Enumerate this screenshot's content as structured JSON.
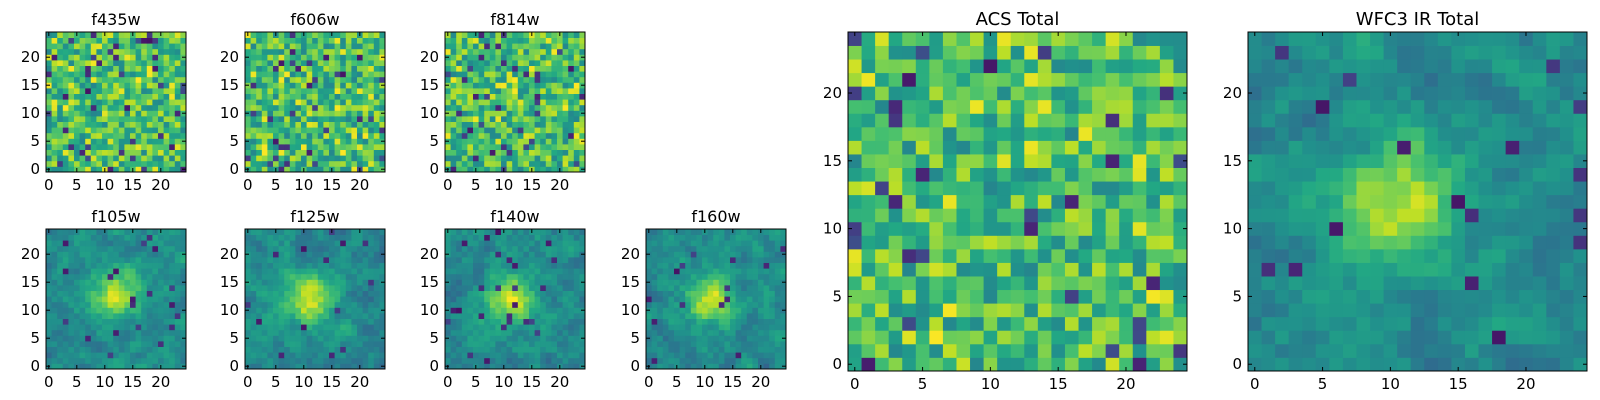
{
  "figure": {
    "background": "#ffffff",
    "colormap": "viridis",
    "colormap_stops": [
      "#440154",
      "#482475",
      "#414487",
      "#355f8d",
      "#2a788e",
      "#21918c",
      "#22a884",
      "#44bf70",
      "#7ad151",
      "#bddf26",
      "#fde725"
    ]
  },
  "chart_data": [
    {
      "name": "f435w",
      "type": "heatmap",
      "title": "f435w",
      "grid": [
        25,
        25
      ],
      "xlim": [
        -0.5,
        24.5
      ],
      "ylim": [
        -0.5,
        24.5
      ],
      "xticks": [
        0,
        5,
        10,
        15,
        20
      ],
      "yticks": [
        0,
        5,
        10,
        15,
        20
      ],
      "profile": "noise",
      "seed": 11
    },
    {
      "name": "f606w",
      "type": "heatmap",
      "title": "f606w",
      "grid": [
        25,
        25
      ],
      "xlim": [
        -0.5,
        24.5
      ],
      "ylim": [
        -0.5,
        24.5
      ],
      "xticks": [
        0,
        5,
        10,
        15,
        20
      ],
      "yticks": [
        0,
        5,
        10,
        15,
        20
      ],
      "profile": "noise",
      "seed": 23
    },
    {
      "name": "f814w",
      "type": "heatmap",
      "title": "f814w",
      "grid": [
        25,
        25
      ],
      "xlim": [
        -0.5,
        24.5
      ],
      "ylim": [
        -0.5,
        24.5
      ],
      "xticks": [
        0,
        5,
        10,
        15,
        20
      ],
      "yticks": [
        0,
        5,
        10,
        15,
        20
      ],
      "profile": "noise",
      "seed": 37
    },
    {
      "name": "f105w",
      "type": "heatmap",
      "title": "f105w",
      "grid": [
        25,
        25
      ],
      "xlim": [
        -0.5,
        24.5
      ],
      "ylim": [
        -0.5,
        24.5
      ],
      "xticks": [
        0,
        5,
        10,
        15,
        20
      ],
      "yticks": [
        0,
        5,
        10,
        15,
        20
      ],
      "profile": "source",
      "peak_center": [
        12,
        13
      ],
      "seed": 41
    },
    {
      "name": "f125w",
      "type": "heatmap",
      "title": "f125w",
      "grid": [
        25,
        25
      ],
      "xlim": [
        -0.5,
        24.5
      ],
      "ylim": [
        -0.5,
        24.5
      ],
      "xticks": [
        0,
        5,
        10,
        15,
        20
      ],
      "yticks": [
        0,
        5,
        10,
        15,
        20
      ],
      "profile": "source",
      "peak_center": [
        11,
        12
      ],
      "seed": 53
    },
    {
      "name": "f140w",
      "type": "heatmap",
      "title": "f140w",
      "grid": [
        25,
        25
      ],
      "xlim": [
        -0.5,
        24.5
      ],
      "ylim": [
        -0.5,
        24.5
      ],
      "xticks": [
        0,
        5,
        10,
        15,
        20
      ],
      "yticks": [
        0,
        5,
        10,
        15,
        20
      ],
      "profile": "source",
      "peak_center": [
        11,
        12
      ],
      "seed": 67
    },
    {
      "name": "f160w",
      "type": "heatmap",
      "title": "f160w",
      "grid": [
        25,
        25
      ],
      "xlim": [
        -0.5,
        24.5
      ],
      "ylim": [
        -0.5,
        24.5
      ],
      "xticks": [
        0,
        5,
        10,
        15,
        20
      ],
      "yticks": [
        0,
        5,
        10,
        15,
        20
      ],
      "profile": "source",
      "peak_center": [
        11,
        12
      ],
      "seed": 79
    },
    {
      "name": "acs-total",
      "type": "heatmap",
      "title": "ACS Total",
      "grid": [
        25,
        25
      ],
      "xlim": [
        -0.5,
        24.5
      ],
      "ylim": [
        -0.5,
        24.5
      ],
      "xticks": [
        0,
        5,
        10,
        15,
        20
      ],
      "yticks": [
        0,
        5,
        10,
        15,
        20
      ],
      "profile": "noise",
      "seed": 97
    },
    {
      "name": "wfc3-ir-total",
      "type": "heatmap",
      "title": "WFC3 IR Total",
      "grid": [
        25,
        25
      ],
      "xlim": [
        -0.5,
        24.5
      ],
      "ylim": [
        -0.5,
        24.5
      ],
      "xticks": [
        0,
        5,
        10,
        15,
        20
      ],
      "yticks": [
        0,
        5,
        10,
        15,
        20
      ],
      "profile": "source",
      "peak_center": [
        11,
        12
      ],
      "seed": 101
    }
  ]
}
